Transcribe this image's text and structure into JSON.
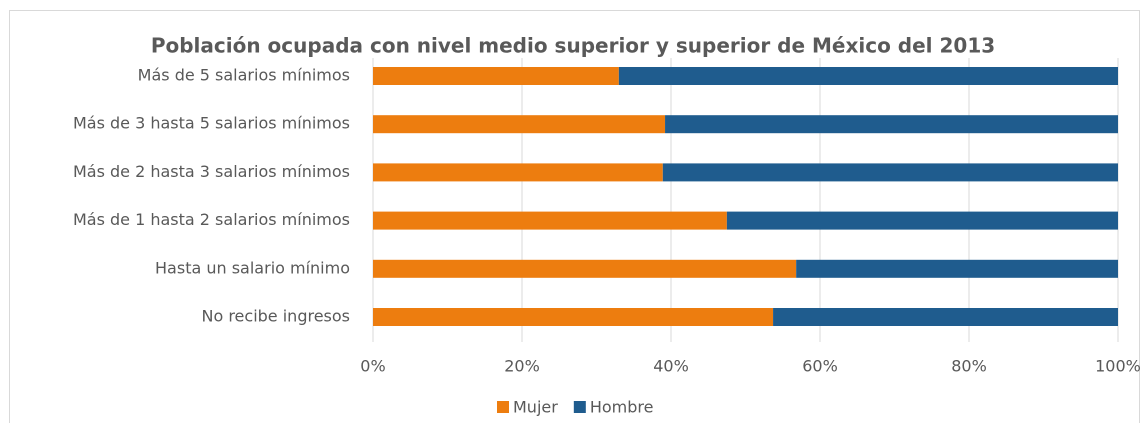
{
  "chart_data": {
    "type": "bar",
    "orientation": "horizontal",
    "stacked": true,
    "title": "Población ocupada con nivel medio superior y superior de México del 2013",
    "categories": [
      "Más de 5 salarios mínimos",
      "Más de 3 hasta 5 salarios mínimos",
      "Más de 2 hasta 3 salarios mínimos",
      "Más de 1 hasta 2 salarios mínimos",
      "Hasta un salario mínimo",
      "No recibe ingresos"
    ],
    "series": [
      {
        "name": "Mujer",
        "color": "#ed7d0f",
        "values": [
          33.0,
          39.2,
          38.9,
          47.5,
          56.8,
          53.7
        ]
      },
      {
        "name": "Hombre",
        "color": "#1f5c8e",
        "values": [
          67.0,
          60.8,
          61.1,
          52.5,
          43.2,
          46.3
        ]
      }
    ],
    "xlim": [
      0,
      100
    ],
    "xticks": [
      {
        "value": 0,
        "label": "0%"
      },
      {
        "value": 20,
        "label": "20%"
      },
      {
        "value": 40,
        "label": "40%"
      },
      {
        "value": 60,
        "label": "60%"
      },
      {
        "value": 80,
        "label": "80%"
      },
      {
        "value": 100,
        "label": "100%"
      }
    ],
    "grid": true,
    "legend": "bottom"
  }
}
